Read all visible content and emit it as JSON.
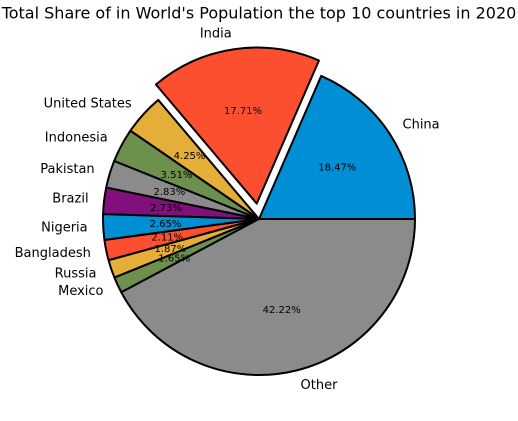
{
  "chart_data": {
    "type": "pie",
    "title": "Total Share of in World's Population the top 10 countries in 2020",
    "categories": [
      "China",
      "India",
      "United States",
      "Indonesia",
      "Pakistan",
      "Brazil",
      "Nigeria",
      "Bangladesh",
      "Russia",
      "Mexico",
      "Other"
    ],
    "values": [
      18.47,
      17.71,
      4.25,
      3.51,
      2.83,
      2.73,
      2.65,
      2.11,
      1.87,
      1.65,
      42.22
    ],
    "value_labels": [
      "18.47%",
      "17.71%",
      "4.25%",
      "3.51%",
      "2.83%",
      "2.73%",
      "2.65%",
      "2.11%",
      "1.87%",
      "1.65%",
      "42.22%"
    ],
    "colors": [
      "#008fd5",
      "#fc4f30",
      "#e5ae38",
      "#6d904f",
      "#8b8b8b",
      "#810f7c",
      "#008fd5",
      "#fc4f30",
      "#e5ae38",
      "#6d904f",
      "#8b8b8b"
    ],
    "explode": [
      0,
      0.1,
      0,
      0,
      0,
      0,
      0,
      0,
      0,
      0,
      0
    ]
  }
}
